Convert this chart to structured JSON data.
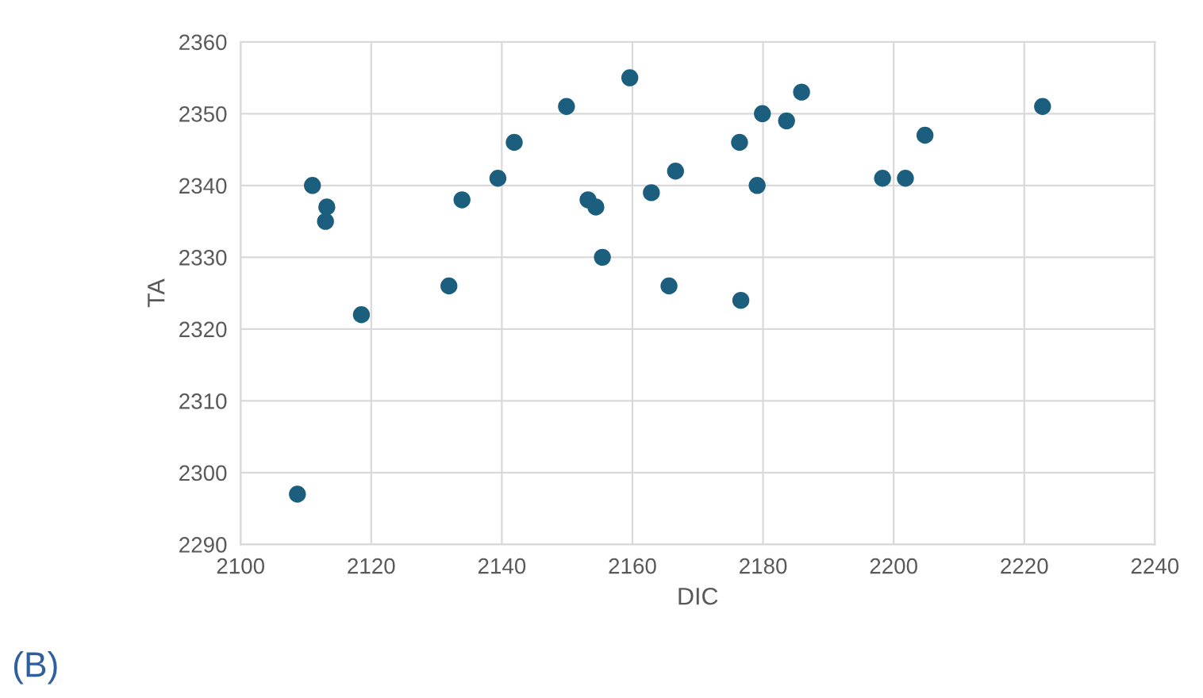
{
  "chart_data": {
    "type": "scatter",
    "xlabel": "DIC",
    "ylabel": "TA",
    "annotations": [
      "(B)"
    ],
    "x": [
      2108.7,
      2111,
      2113.2,
      2113,
      2118.5,
      2131.9,
      2133.9,
      2139.4,
      2141.9,
      2149.9,
      2153.2,
      2154.4,
      2155.4,
      2159.6,
      2162.9,
      2165.6,
      2166.6,
      2176.4,
      2176.6,
      2179.1,
      2179.9,
      2183.6,
      2185.9,
      2198.3,
      2201.8,
      2204.8,
      2222.8
    ],
    "values": [
      2297,
      2340,
      2337,
      2335,
      2322,
      2326,
      2338,
      2341,
      2346,
      2351,
      2338,
      2337,
      2330,
      2355,
      2339,
      2326,
      2342,
      2346,
      2324,
      2340,
      2350,
      2349,
      2353,
      2341,
      2341,
      2347,
      2351
    ],
    "color": "#1b5e7e",
    "marker": "circle",
    "grid": true,
    "legend": false,
    "xlim": [
      2100,
      2240
    ],
    "xticks": [
      2100,
      2120,
      2140,
      2160,
      2180,
      2200,
      2220,
      2240
    ],
    "ylim": [
      2290,
      2360
    ],
    "yticks": [
      2290,
      2300,
      2310,
      2320,
      2330,
      2340,
      2350,
      2360
    ]
  }
}
